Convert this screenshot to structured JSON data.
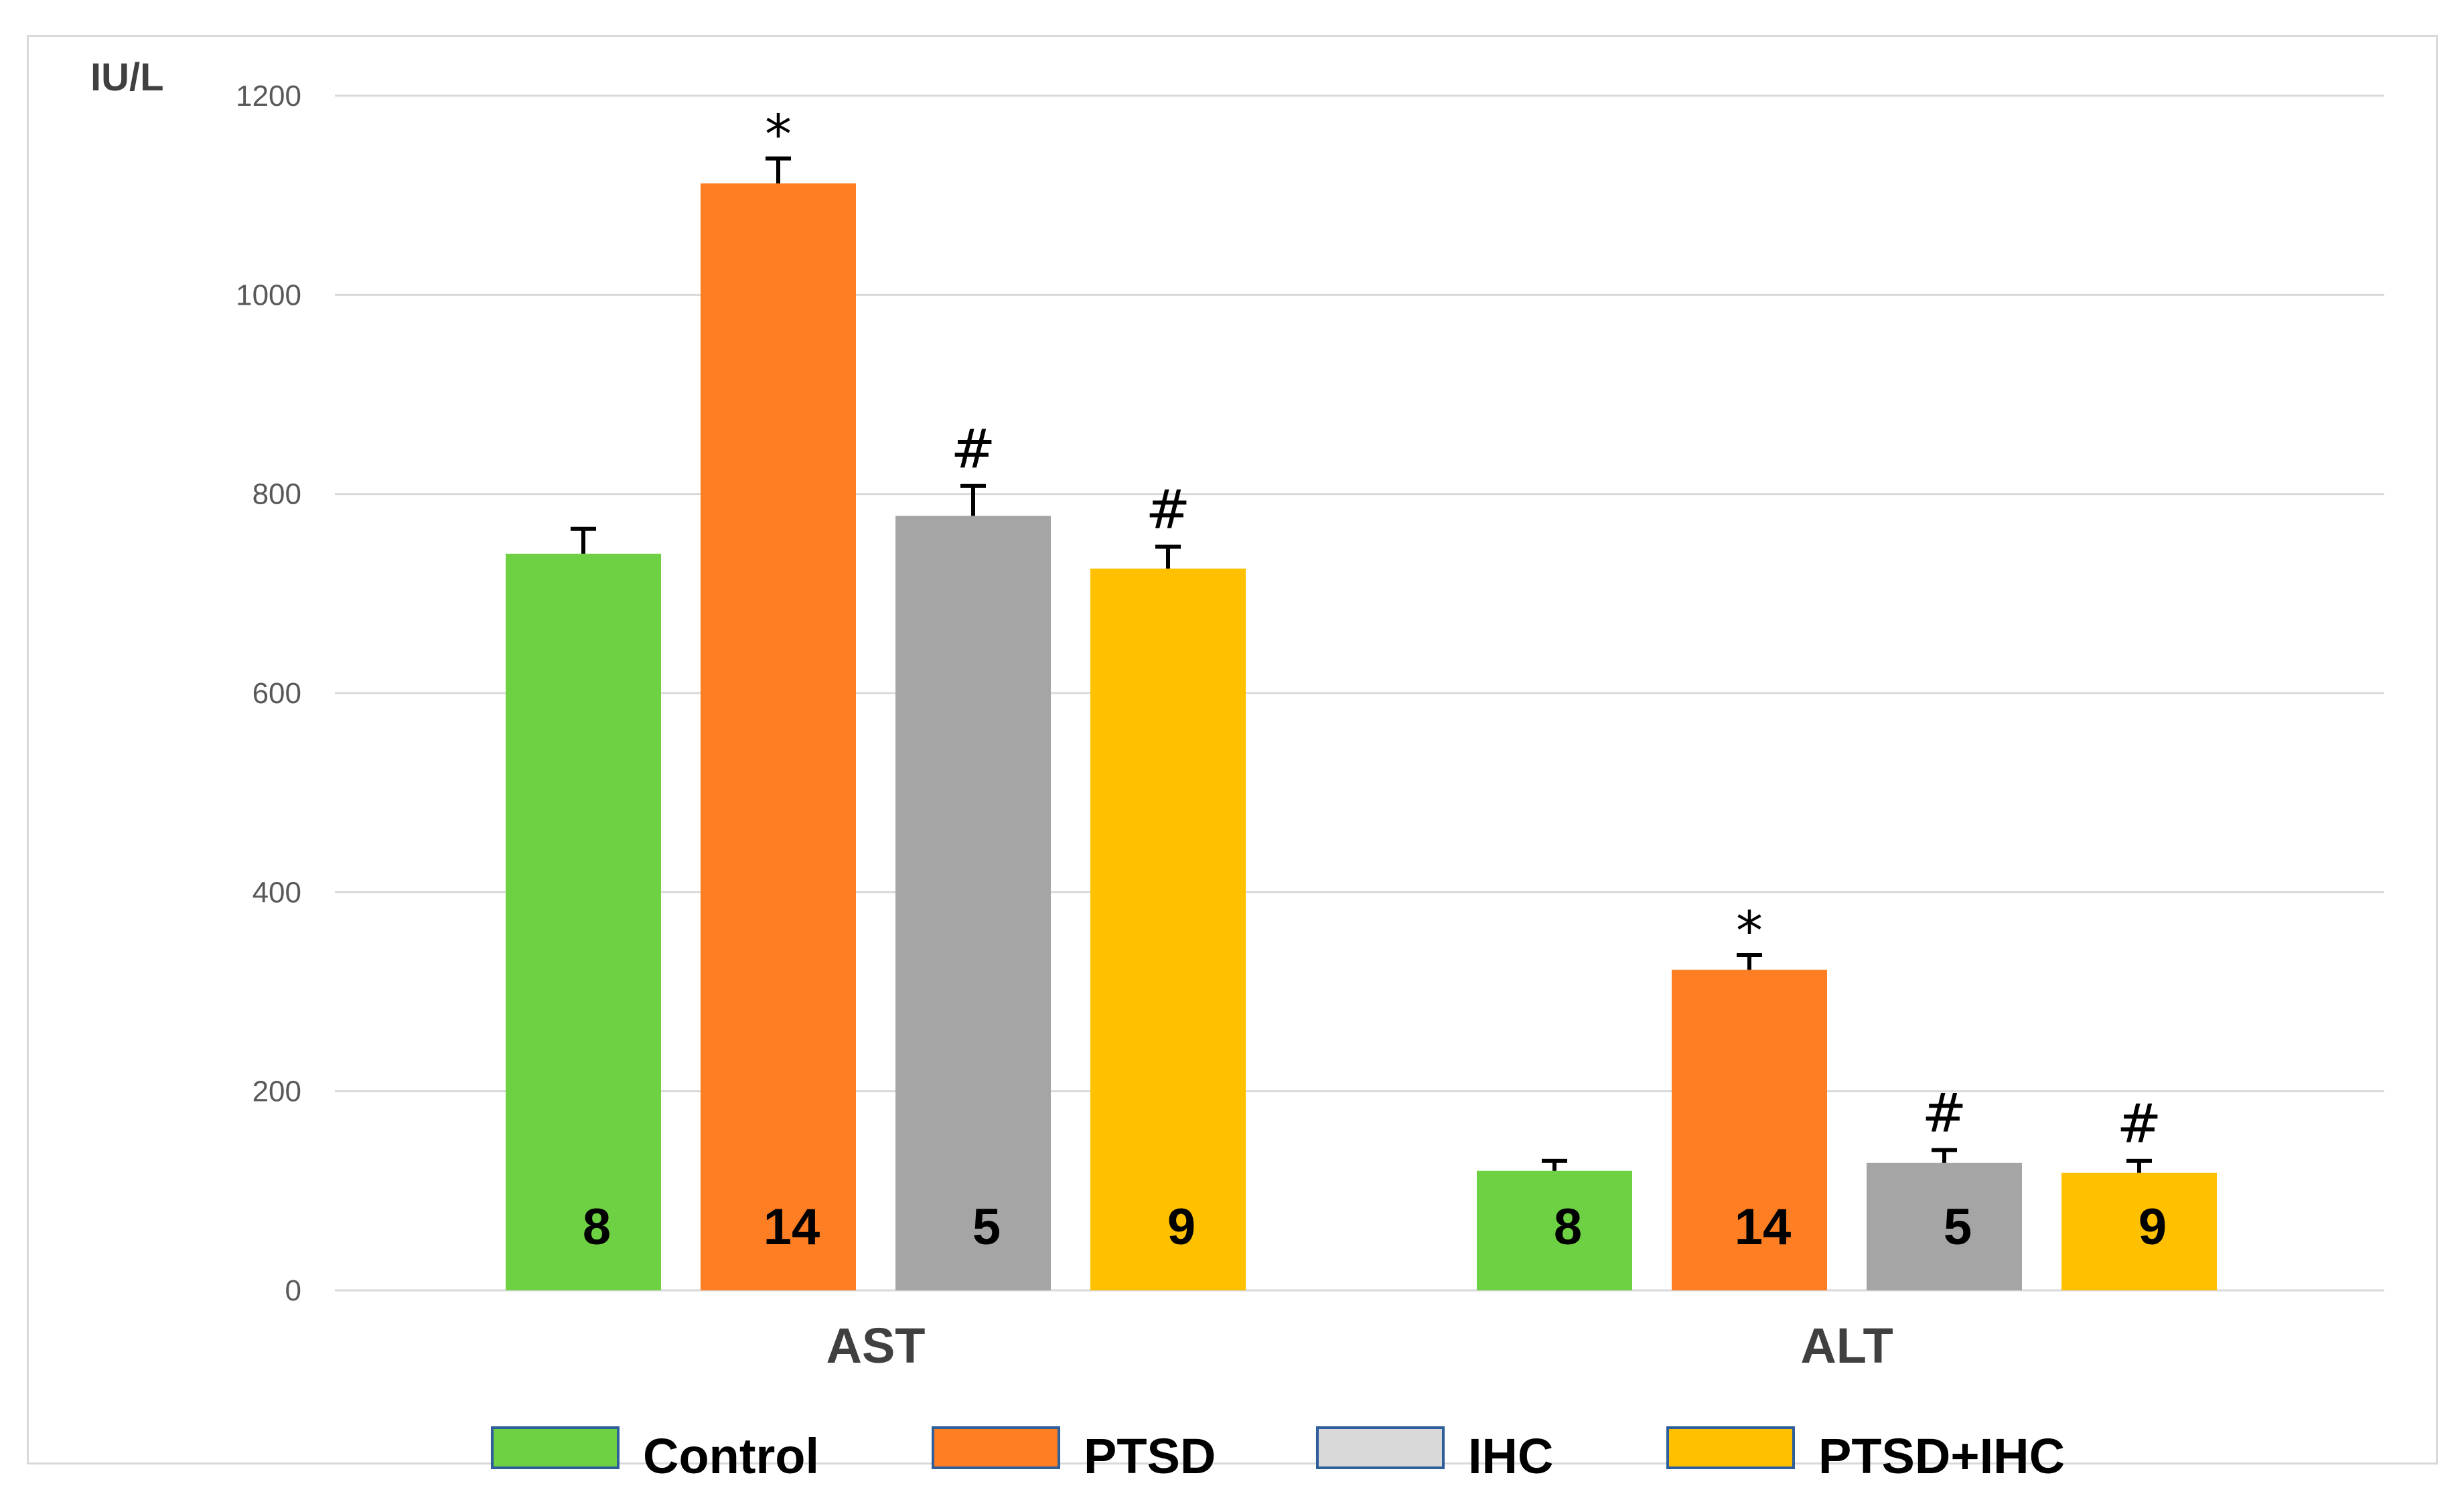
{
  "chart_data": {
    "type": "bar",
    "title": "",
    "ylabel": "IU/L",
    "xlabel": "",
    "ylim": [
      0,
      1200
    ],
    "yticks": [
      "0",
      "200",
      "400",
      "600",
      "800",
      "1000",
      "1200"
    ],
    "grid": true,
    "legend_position": "bottom",
    "categories": [
      "AST",
      "ALT"
    ],
    "series": [
      {
        "name": "Control",
        "color": "#6dd143",
        "values": [
          740,
          120
        ],
        "errors": [
          25,
          10
        ],
        "n": [
          "8",
          "8"
        ],
        "sig": [
          "",
          ""
        ]
      },
      {
        "name": "PTSD",
        "color": "#fd7e23",
        "values": [
          1112,
          322
        ],
        "errors": [
          25,
          15
        ],
        "n": [
          "14",
          "14"
        ],
        "sig": [
          "*",
          "*"
        ]
      },
      {
        "name": "IHC",
        "color": "#a5a5a5",
        "values": [
          778,
          128
        ],
        "errors": [
          30,
          13
        ],
        "n": [
          "5",
          "5"
        ],
        "sig": [
          "#",
          "#"
        ]
      },
      {
        "name": "PTSD+IHC",
        "color": "#ffc000",
        "values": [
          725,
          118
        ],
        "errors": [
          22,
          12
        ],
        "n": [
          "9",
          "9"
        ],
        "sig": [
          "#",
          "#"
        ]
      }
    ],
    "legend_swatch_colors": [
      "#6dd143",
      "#fd7e23",
      "#d9d9d9",
      "#ffc000"
    ],
    "legend_border_color": "#2e5f9a",
    "gridline_color": "#d9d9d9",
    "errorbar_color": "#000000"
  }
}
